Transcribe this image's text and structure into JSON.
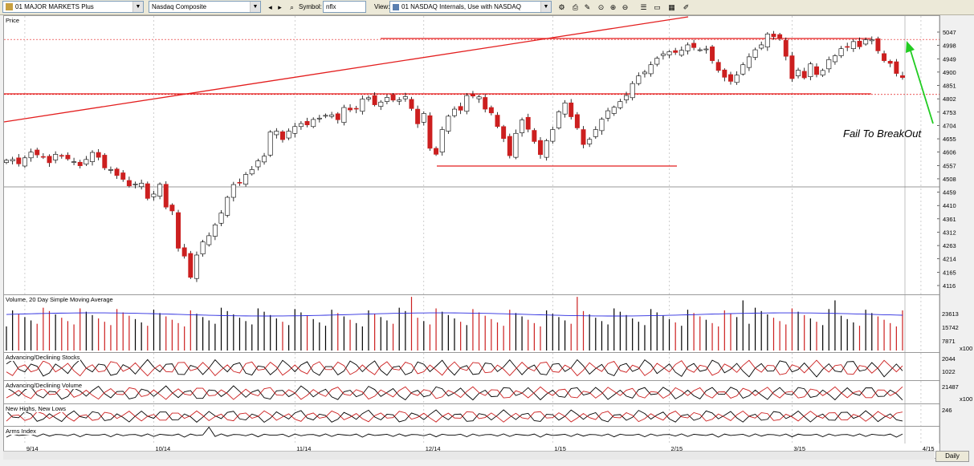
{
  "toolbar": {
    "watchlist": "01 MAJOR MARKETS Plus",
    "index": "Nasdaq Composite",
    "symbol_label": "Symbol:",
    "symbol_value": "nflx",
    "view_label": "View:",
    "view_value": "01 NASDAQ Internals, Use with NASDAQ"
  },
  "panels": {
    "price": "Price",
    "volume": "Volume, 20 Day Simple Moving Average",
    "adv_dec_stocks": "Advancing/Declining Stocks",
    "adv_dec_volume": "Advancing/Declining Volume",
    "new_highs_lows": "New Highs, New Lows",
    "arms": "Arms Index"
  },
  "annotation": "Fail To BreakOut",
  "volume_axis": {
    "ticks": [
      "23613",
      "15742",
      "7871"
    ],
    "unit": "x100"
  },
  "adv_dec_stocks_axis": {
    "ticks": [
      "2044",
      "1022"
    ]
  },
  "adv_dec_volume_axis": {
    "ticks": [
      "21487"
    ],
    "unit": "x100"
  },
  "new_highs_axis": {
    "ticks": [
      "246"
    ]
  },
  "footer": {
    "period_button": "Daily"
  },
  "colors": {
    "up": "#ffffff",
    "down": "#cc1f1f",
    "trendline": "#e31e1e",
    "arrow": "#22cc22",
    "ma": "#2a2adf"
  },
  "chart_data": {
    "type": "candlestick",
    "title": "",
    "ylabel": "Price",
    "ylim": [
      4090,
      5080
    ],
    "yticks": [
      5047,
      4998,
      4949,
      4900,
      4851,
      4802,
      4753,
      4704,
      4655,
      4606,
      4557,
      4508,
      4459,
      4410,
      4361,
      4312,
      4263,
      4214,
      4165,
      4116
    ],
    "x_tick_labels": [
      "9/14",
      "10/14",
      "11/14",
      "12/14",
      "1/15",
      "2/15",
      "3/15",
      "4/15"
    ],
    "x_tick_index": [
      3,
      24,
      47,
      68,
      89,
      108,
      128,
      149
    ],
    "closes": [
      4576,
      4579,
      4563,
      4585,
      4606,
      4596,
      4589,
      4567,
      4598,
      4591,
      4581,
      4571,
      4556,
      4579,
      4605,
      4587,
      4548,
      4542,
      4520,
      4506,
      4482,
      4489,
      4492,
      4436,
      4452,
      4488,
      4404,
      4390,
      4253,
      4224,
      4146,
      4228,
      4276,
      4299,
      4339,
      4382,
      4440,
      4487,
      4494,
      4524,
      4542,
      4574,
      4591,
      4680,
      4683,
      4652,
      4683,
      4700,
      4711,
      4706,
      4726,
      4731,
      4741,
      4743,
      4725,
      4770,
      4761,
      4764,
      4801,
      4806,
      4780,
      4790,
      4807,
      4797,
      4798,
      4810,
      4766,
      4710,
      4748,
      4620,
      4598,
      4689,
      4738,
      4764,
      4760,
      4814,
      4812,
      4809,
      4764,
      4750,
      4700,
      4656,
      4593,
      4675,
      4724,
      4690,
      4645,
      4597,
      4648,
      4689,
      4754,
      4787,
      4736,
      4695,
      4634,
      4653,
      4689,
      4727,
      4758,
      4771,
      4792,
      4814,
      4858,
      4886,
      4900,
      4927,
      4951,
      4967,
      4975,
      4972,
      4980,
      5000,
      4990,
      4982,
      4985,
      4942,
      4906,
      4881,
      4866,
      4889,
      4927,
      4956,
      4982,
      5000,
      5040,
      5030,
      5023,
      4958,
      4876,
      4907,
      4879,
      4930,
      4891,
      4906,
      4946,
      4960,
      4986,
      4992,
      5012,
      4993,
      5019,
      5019,
      4978,
      4942,
      4932,
      4895,
      4880
    ],
    "annotations": [
      "Fail To BreakOut"
    ]
  }
}
